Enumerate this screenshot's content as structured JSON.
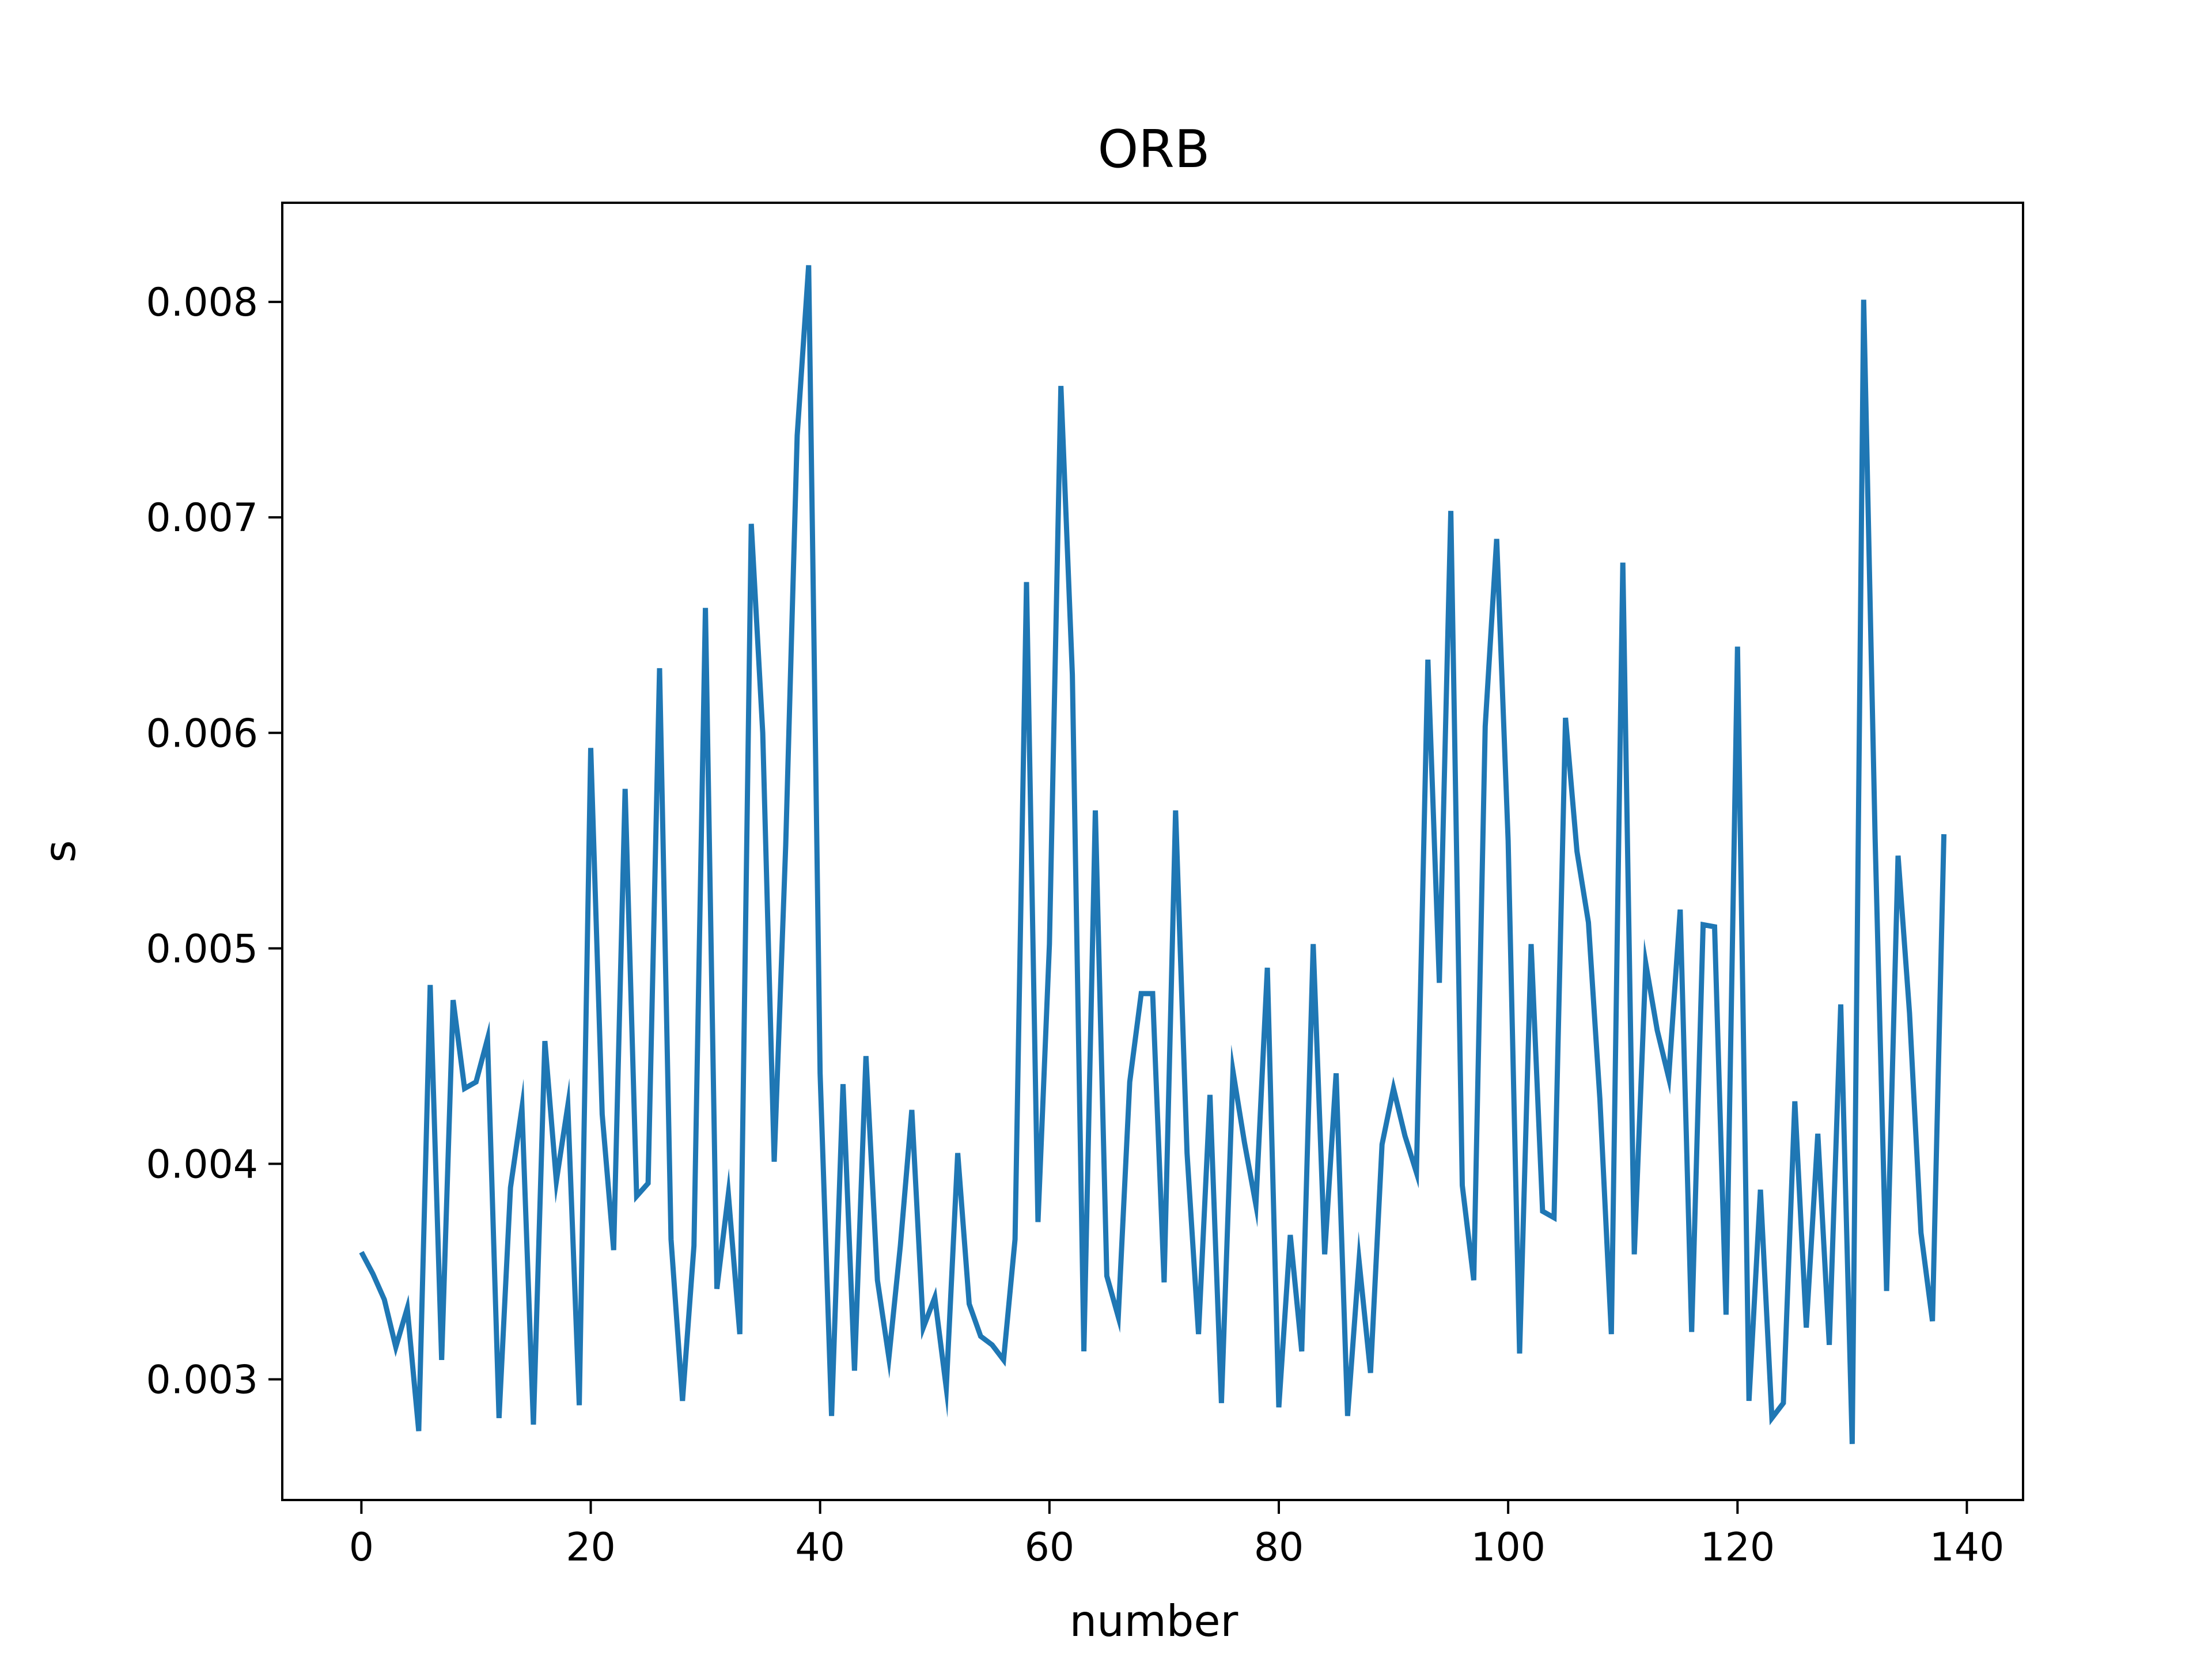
{
  "chart_data": {
    "type": "line",
    "title": "ORB",
    "xlabel": "number",
    "ylabel": "s",
    "xlim": [
      -6.9,
      144.9
    ],
    "ylim": [
      0.00244,
      0.00846
    ],
    "xticks": [
      0,
      20,
      40,
      60,
      80,
      100,
      120,
      140
    ],
    "xtick_labels": [
      "0",
      "20",
      "40",
      "60",
      "80",
      "100",
      "120",
      "140"
    ],
    "yticks": [
      0.003,
      0.004,
      0.005,
      0.006,
      0.007,
      0.008
    ],
    "ytick_labels": [
      "0.003",
      "0.004",
      "0.005",
      "0.006",
      "0.007",
      "0.008"
    ],
    "grid": false,
    "series": [
      {
        "color": "#1f77b4",
        "x": [
          0,
          1,
          2,
          3,
          4,
          5,
          6,
          7,
          8,
          9,
          10,
          11,
          12,
          13,
          14,
          15,
          16,
          17,
          18,
          19,
          20,
          21,
          22,
          23,
          24,
          25,
          26,
          27,
          28,
          29,
          30,
          31,
          32,
          33,
          34,
          35,
          36,
          37,
          38,
          39,
          40,
          41,
          42,
          43,
          44,
          45,
          46,
          47,
          48,
          49,
          50,
          51,
          52,
          53,
          54,
          55,
          56,
          57,
          58,
          59,
          60,
          61,
          62,
          63,
          64,
          65,
          66,
          67,
          68,
          69,
          70,
          71,
          72,
          73,
          74,
          75,
          76,
          77,
          78,
          79,
          80,
          81,
          82,
          83,
          84,
          85,
          86,
          87,
          88,
          89,
          90,
          91,
          92,
          93,
          94,
          95,
          96,
          97,
          98,
          99,
          100,
          101,
          102,
          103,
          104,
          105,
          106,
          107,
          108,
          109,
          110,
          111,
          112,
          113,
          114,
          115,
          116,
          117,
          118,
          119,
          120,
          121,
          122,
          123,
          124,
          125,
          126,
          127,
          128,
          129,
          130,
          131,
          132,
          133,
          134,
          135,
          136,
          137,
          138
        ],
        "values": [
          0.00359,
          0.00349,
          0.00337,
          0.00315,
          0.00333,
          0.00276,
          0.00483,
          0.00309,
          0.00476,
          0.00435,
          0.00438,
          0.00458,
          0.00282,
          0.00389,
          0.00426,
          0.00279,
          0.00457,
          0.00392,
          0.00427,
          0.00288,
          0.00593,
          0.00423,
          0.0036,
          0.00574,
          0.00385,
          0.00391,
          0.0063,
          0.00365,
          0.0029,
          0.00362,
          0.00658,
          0.00342,
          0.00386,
          0.00321,
          0.00697,
          0.006,
          0.00401,
          0.00548,
          0.00738,
          0.00817,
          0.00442,
          0.00283,
          0.00437,
          0.00304,
          0.0045,
          0.00346,
          0.0031,
          0.00362,
          0.00425,
          0.00324,
          0.00338,
          0.00296,
          0.00405,
          0.00335,
          0.0032,
          0.00316,
          0.00309,
          0.00365,
          0.0067,
          0.00373,
          0.00502,
          0.00761,
          0.00627,
          0.00313,
          0.00564,
          0.00348,
          0.00329,
          0.00438,
          0.00479,
          0.00479,
          0.00345,
          0.00564,
          0.00405,
          0.00321,
          0.00432,
          0.00289,
          0.00443,
          0.0041,
          0.00381,
          0.00491,
          0.00287,
          0.00367,
          0.00313,
          0.00502,
          0.00358,
          0.00442,
          0.00283,
          0.00355,
          0.00303,
          0.00409,
          0.00435,
          0.00413,
          0.00396,
          0.00634,
          0.00484,
          0.00703,
          0.0039,
          0.00346,
          0.00603,
          0.0069,
          0.0055,
          0.00312,
          0.00502,
          0.00378,
          0.00375,
          0.00607,
          0.00545,
          0.00512,
          0.0043,
          0.00321,
          0.00679,
          0.00358,
          0.00493,
          0.00462,
          0.0044,
          0.00518,
          0.00322,
          0.00511,
          0.0051,
          0.0033,
          0.0064,
          0.0029,
          0.00388,
          0.00282,
          0.00289,
          0.00429,
          0.00324,
          0.00414,
          0.00316,
          0.00474,
          0.0027,
          0.00801,
          0.00551,
          0.00341,
          0.00543,
          0.0047,
          0.00368,
          0.00327,
          0.00553
        ]
      }
    ]
  }
}
